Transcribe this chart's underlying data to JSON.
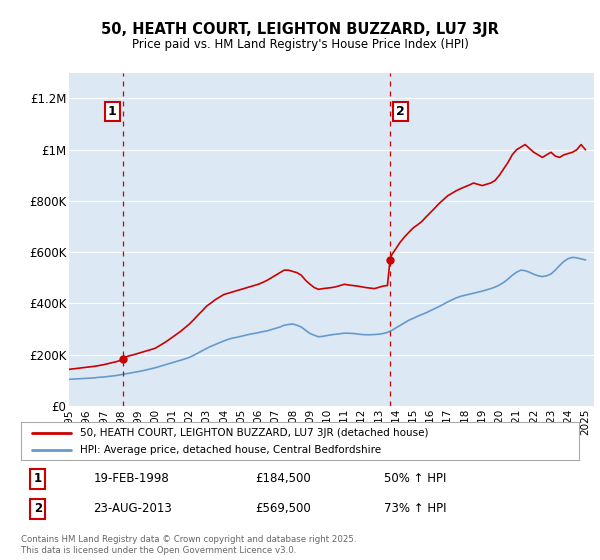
{
  "title": "50, HEATH COURT, LEIGHTON BUZZARD, LU7 3JR",
  "subtitle": "Price paid vs. HM Land Registry's House Price Index (HPI)",
  "background_color": "#ffffff",
  "plot_bg_color": "#dce9f5",
  "grid_color": "#ffffff",
  "ylim": [
    0,
    1300000
  ],
  "xlim_start": 1995,
  "xlim_end": 2025.5,
  "yticks": [
    0,
    200000,
    400000,
    600000,
    800000,
    1000000,
    1200000
  ],
  "ytick_labels": [
    "£0",
    "£200K",
    "£400K",
    "£600K",
    "£800K",
    "£1M",
    "£1.2M"
  ],
  "red_line_color": "#cc0000",
  "blue_line_color": "#6699cc",
  "purchase_marker_color": "#cc0000",
  "vline_color": "#cc0000",
  "purchase1": {
    "date_x": 1998.12,
    "price": 184500,
    "label": "1",
    "date_str": "19-FEB-1998",
    "price_str": "£184,500",
    "hpi_str": "50% ↑ HPI"
  },
  "purchase2": {
    "date_x": 2013.65,
    "price": 569500,
    "label": "2",
    "date_str": "23-AUG-2013",
    "price_str": "£569,500",
    "hpi_str": "73% ↑ HPI"
  },
  "legend_red_label": "50, HEATH COURT, LEIGHTON BUZZARD, LU7 3JR (detached house)",
  "legend_blue_label": "HPI: Average price, detached house, Central Bedfordshire",
  "footnote": "Contains HM Land Registry data © Crown copyright and database right 2025.\nThis data is licensed under the Open Government Licence v3.0.",
  "red_line_x": [
    1995.0,
    1995.25,
    1995.5,
    1995.75,
    1996.0,
    1996.25,
    1996.5,
    1996.75,
    1997.0,
    1997.25,
    1997.5,
    1997.75,
    1998.0,
    1998.12,
    1998.25,
    1998.5,
    1998.75,
    1999.0,
    1999.25,
    1999.5,
    1999.75,
    2000.0,
    2000.25,
    2000.5,
    2000.75,
    2001.0,
    2001.25,
    2001.5,
    2001.75,
    2002.0,
    2002.25,
    2002.5,
    2002.75,
    2003.0,
    2003.25,
    2003.5,
    2003.75,
    2004.0,
    2004.25,
    2004.5,
    2004.75,
    2005.0,
    2005.25,
    2005.5,
    2005.75,
    2006.0,
    2006.25,
    2006.5,
    2006.75,
    2007.0,
    2007.25,
    2007.5,
    2007.75,
    2008.0,
    2008.25,
    2008.5,
    2008.75,
    2009.0,
    2009.25,
    2009.5,
    2009.75,
    2010.0,
    2010.25,
    2010.5,
    2010.75,
    2011.0,
    2011.25,
    2011.5,
    2011.75,
    2012.0,
    2012.25,
    2012.5,
    2012.75,
    2013.0,
    2013.25,
    2013.5,
    2013.65,
    2013.75,
    2014.0,
    2014.25,
    2014.5,
    2014.75,
    2015.0,
    2015.25,
    2015.5,
    2015.75,
    2016.0,
    2016.25,
    2016.5,
    2016.75,
    2017.0,
    2017.25,
    2017.5,
    2017.75,
    2018.0,
    2018.25,
    2018.5,
    2018.75,
    2019.0,
    2019.25,
    2019.5,
    2019.75,
    2020.0,
    2020.25,
    2020.5,
    2020.75,
    2021.0,
    2021.25,
    2021.5,
    2021.75,
    2022.0,
    2022.25,
    2022.5,
    2022.75,
    2023.0,
    2023.25,
    2023.5,
    2023.75,
    2024.0,
    2024.25,
    2024.5,
    2024.75,
    2025.0
  ],
  "red_line_y": [
    143000,
    145000,
    147000,
    149000,
    151000,
    153000,
    155000,
    158000,
    161000,
    165000,
    169000,
    173000,
    178000,
    184500,
    190000,
    196000,
    200000,
    205000,
    210000,
    215000,
    220000,
    225000,
    235000,
    245000,
    256000,
    268000,
    280000,
    292000,
    306000,
    320000,
    337000,
    355000,
    372000,
    390000,
    402000,
    415000,
    425000,
    435000,
    440000,
    445000,
    450000,
    455000,
    460000,
    465000,
    470000,
    475000,
    482000,
    490000,
    500000,
    510000,
    520000,
    530000,
    530000,
    525000,
    520000,
    510000,
    490000,
    475000,
    462000,
    455000,
    458000,
    460000,
    462000,
    465000,
    470000,
    475000,
    472000,
    470000,
    468000,
    465000,
    462000,
    460000,
    458000,
    463000,
    468000,
    470000,
    569500,
    590000,
    615000,
    640000,
    660000,
    678000,
    695000,
    707000,
    720000,
    738000,
    755000,
    772000,
    790000,
    805000,
    820000,
    830000,
    840000,
    848000,
    855000,
    862000,
    870000,
    865000,
    860000,
    865000,
    870000,
    880000,
    900000,
    925000,
    950000,
    980000,
    1000000,
    1010000,
    1020000,
    1005000,
    990000,
    980000,
    970000,
    980000,
    990000,
    975000,
    970000,
    980000,
    985000,
    990000,
    1000000,
    1020000,
    1000000
  ],
  "blue_line_x": [
    1995.0,
    1995.25,
    1995.5,
    1995.75,
    1996.0,
    1996.25,
    1996.5,
    1996.75,
    1997.0,
    1997.25,
    1997.5,
    1997.75,
    1998.0,
    1998.25,
    1998.5,
    1998.75,
    1999.0,
    1999.25,
    1999.5,
    1999.75,
    2000.0,
    2000.25,
    2000.5,
    2000.75,
    2001.0,
    2001.25,
    2001.5,
    2001.75,
    2002.0,
    2002.25,
    2002.5,
    2002.75,
    2003.0,
    2003.25,
    2003.5,
    2003.75,
    2004.0,
    2004.25,
    2004.5,
    2004.75,
    2005.0,
    2005.25,
    2005.5,
    2005.75,
    2006.0,
    2006.25,
    2006.5,
    2006.75,
    2007.0,
    2007.25,
    2007.5,
    2007.75,
    2008.0,
    2008.25,
    2008.5,
    2008.75,
    2009.0,
    2009.25,
    2009.5,
    2009.75,
    2010.0,
    2010.25,
    2010.5,
    2010.75,
    2011.0,
    2011.25,
    2011.5,
    2011.75,
    2012.0,
    2012.25,
    2012.5,
    2012.75,
    2013.0,
    2013.25,
    2013.5,
    2013.75,
    2014.0,
    2014.25,
    2014.5,
    2014.75,
    2015.0,
    2015.25,
    2015.5,
    2015.75,
    2016.0,
    2016.25,
    2016.5,
    2016.75,
    2017.0,
    2017.25,
    2017.5,
    2017.75,
    2018.0,
    2018.25,
    2018.5,
    2018.75,
    2019.0,
    2019.25,
    2019.5,
    2019.75,
    2020.0,
    2020.25,
    2020.5,
    2020.75,
    2021.0,
    2021.25,
    2021.5,
    2021.75,
    2022.0,
    2022.25,
    2022.5,
    2022.75,
    2023.0,
    2023.25,
    2023.5,
    2023.75,
    2024.0,
    2024.25,
    2024.5,
    2024.75,
    2025.0
  ],
  "blue_line_y": [
    104000,
    105000,
    106000,
    107000,
    108000,
    109000,
    110000,
    112000,
    113000,
    115000,
    117000,
    119000,
    122000,
    125000,
    128000,
    131000,
    134000,
    137000,
    141000,
    145000,
    149000,
    154000,
    159000,
    164000,
    169000,
    174000,
    179000,
    184000,
    190000,
    198000,
    207000,
    216000,
    225000,
    233000,
    240000,
    247000,
    254000,
    260000,
    265000,
    268000,
    272000,
    276000,
    280000,
    283000,
    286000,
    290000,
    293000,
    298000,
    303000,
    308000,
    315000,
    318000,
    320000,
    315000,
    308000,
    295000,
    283000,
    276000,
    270000,
    272000,
    275000,
    278000,
    280000,
    282000,
    284000,
    284000,
    283000,
    281000,
    279000,
    278000,
    278000,
    279000,
    280000,
    283000,
    287000,
    295000,
    305000,
    315000,
    325000,
    335000,
    342000,
    350000,
    357000,
    364000,
    372000,
    380000,
    388000,
    397000,
    406000,
    414000,
    422000,
    428000,
    432000,
    436000,
    440000,
    444000,
    448000,
    453000,
    458000,
    464000,
    472000,
    482000,
    495000,
    510000,
    522000,
    530000,
    528000,
    522000,
    514000,
    508000,
    505000,
    508000,
    515000,
    530000,
    548000,
    564000,
    575000,
    580000,
    578000,
    574000,
    570000
  ]
}
